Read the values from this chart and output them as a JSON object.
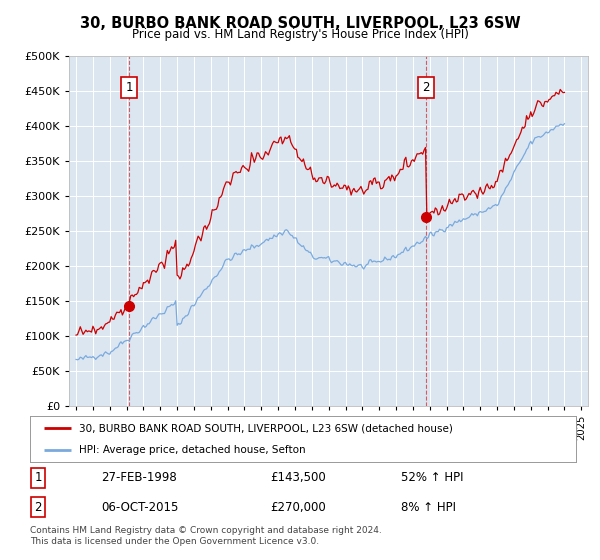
{
  "title": "30, BURBO BANK ROAD SOUTH, LIVERPOOL, L23 6SW",
  "subtitle": "Price paid vs. HM Land Registry's House Price Index (HPI)",
  "legend_line1": "30, BURBO BANK ROAD SOUTH, LIVERPOOL, L23 6SW (detached house)",
  "legend_line2": "HPI: Average price, detached house, Sefton",
  "sale1_date": "27-FEB-1998",
  "sale1_price": "£143,500",
  "sale1_hpi": "52% ↑ HPI",
  "sale1_year": 1998.15,
  "sale1_value": 143500,
  "sale2_date": "06-OCT-2015",
  "sale2_price": "£270,000",
  "sale2_hpi": "8% ↑ HPI",
  "sale2_year": 2015.76,
  "sale2_value": 270000,
  "red_color": "#cc0000",
  "blue_color": "#7aaadd",
  "background_color": "#dce6f1",
  "footer": "Contains HM Land Registry data © Crown copyright and database right 2024.\nThis data is licensed under the Open Government Licence v3.0.",
  "ylim": [
    0,
    500000
  ],
  "yticks": [
    0,
    50000,
    100000,
    150000,
    200000,
    250000,
    300000,
    350000,
    400000,
    450000,
    500000
  ]
}
